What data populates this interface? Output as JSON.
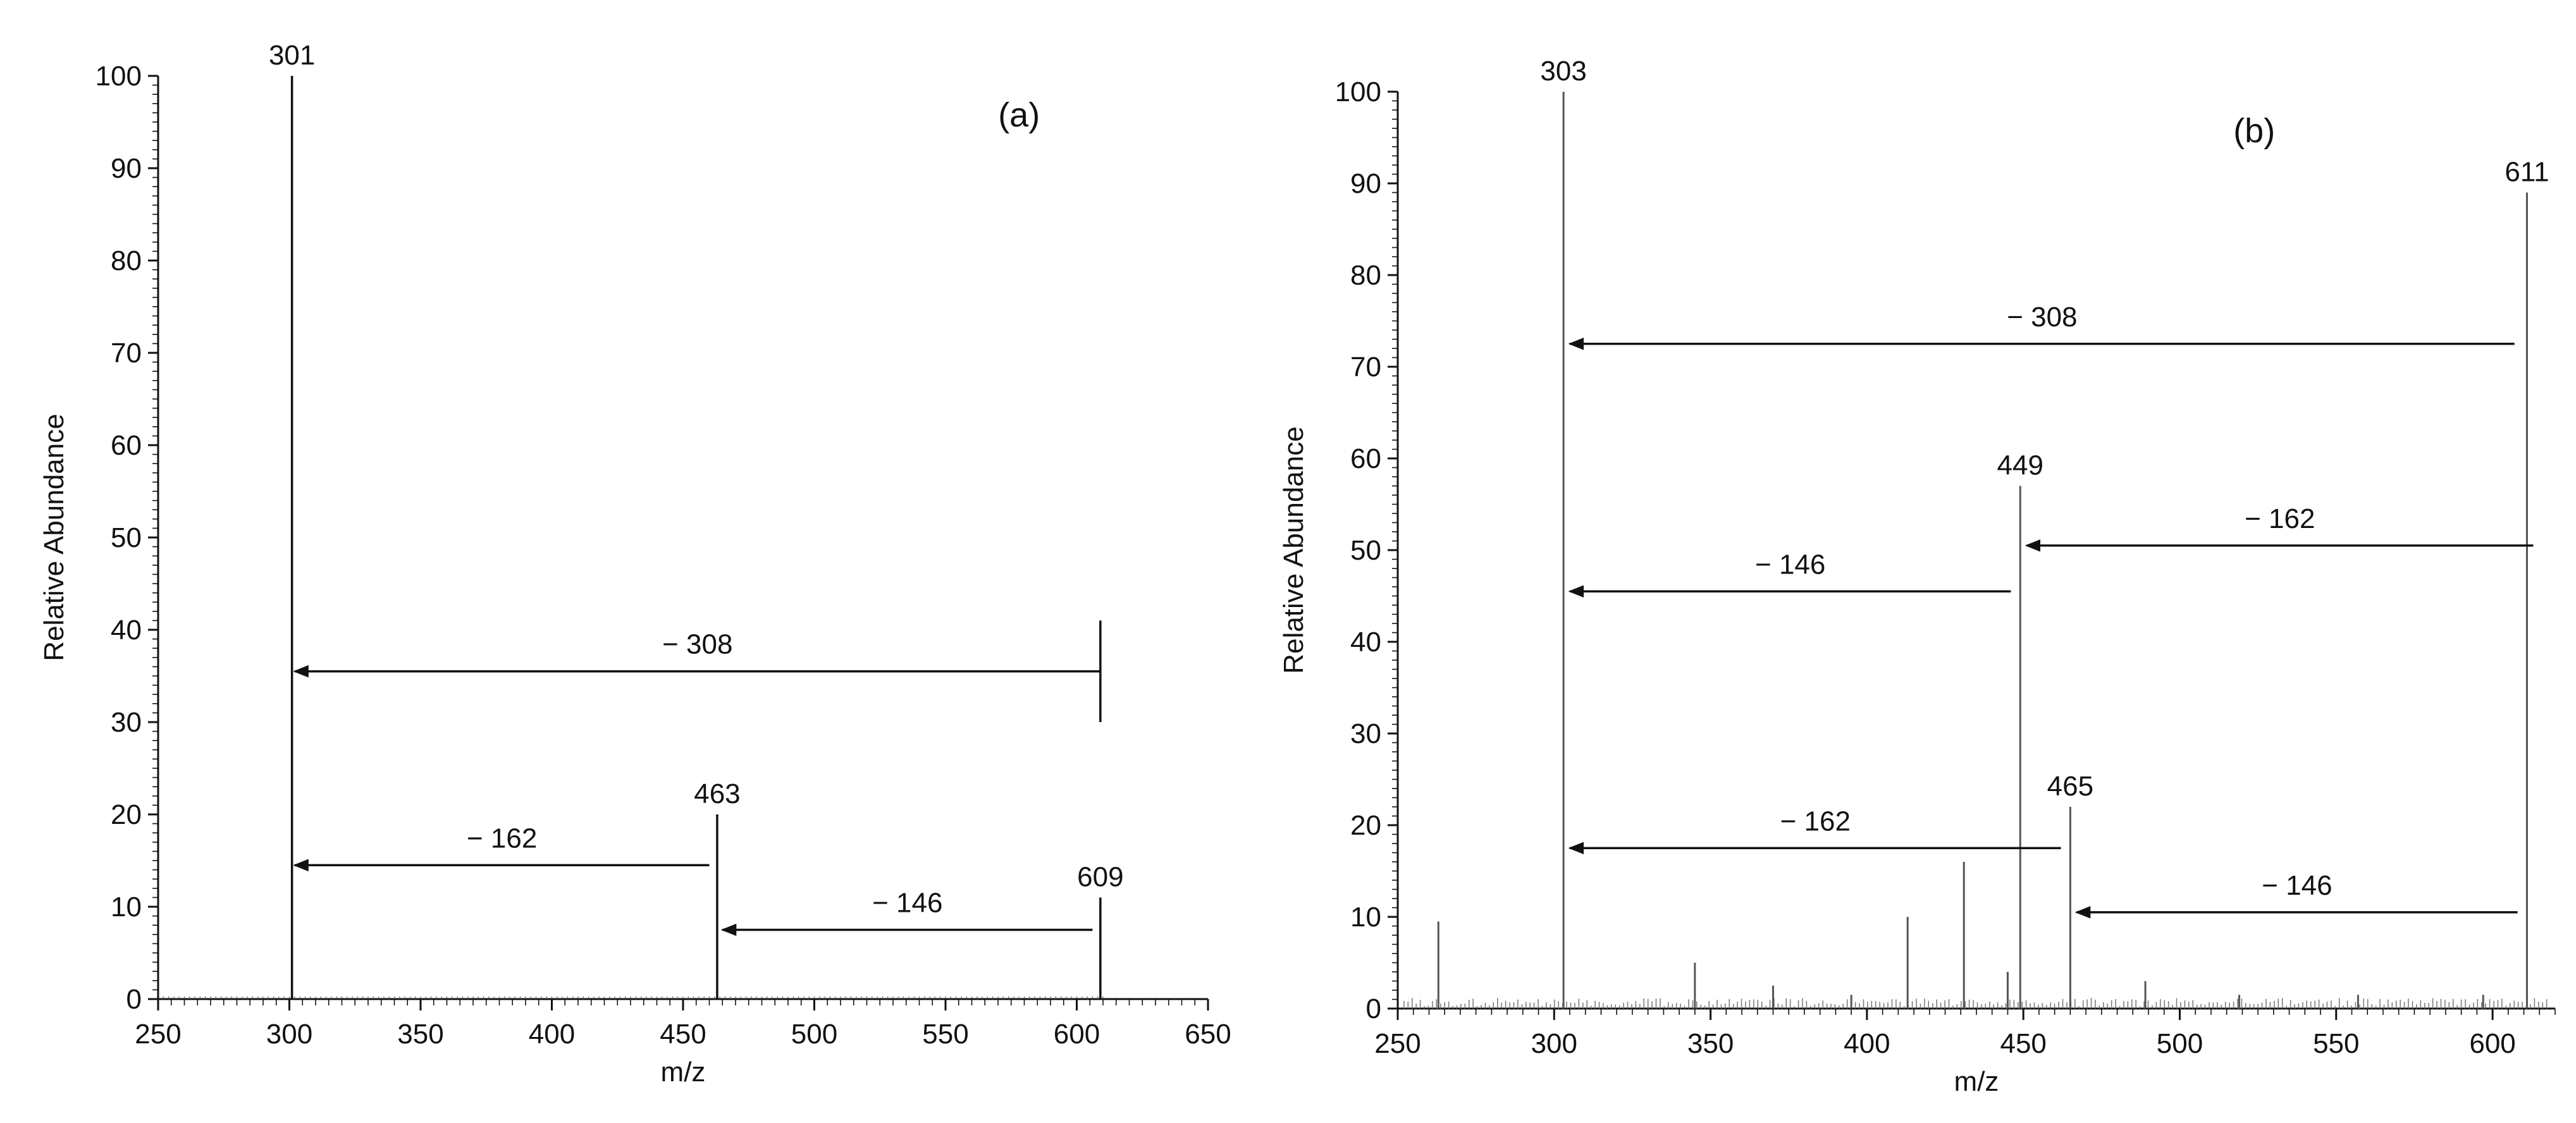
{
  "chart_data": [
    {
      "type": "bar",
      "panel_label": "(a)",
      "xlabel": "m/z",
      "ylabel": "Relative Abundance",
      "xlim": [
        250,
        650
      ],
      "ylim": [
        0,
        100
      ],
      "x_ticks": [
        "250",
        "300",
        "350",
        "400",
        "450",
        "500",
        "550",
        "600",
        "650"
      ],
      "y_ticks": [
        "0",
        "10",
        "20",
        "30",
        "40",
        "50",
        "60",
        "70",
        "80",
        "90",
        "100"
      ],
      "grid": false,
      "peaks": [
        {
          "x": 301,
          "y": 100,
          "label": "301"
        },
        {
          "x": 463,
          "y": 20,
          "label": "463"
        },
        {
          "x": 609,
          "y": 11,
          "label": "609"
        }
      ],
      "annotations": [
        {
          "type": "bracket",
          "x": 609,
          "y_from": 30,
          "y_to": 41
        },
        {
          "label": "− 308",
          "from_x": 609,
          "to_x": 302,
          "y": 35.5
        },
        {
          "label": "− 162",
          "from_x": 460,
          "to_x": 302,
          "y": 14.5
        },
        {
          "label": "− 146",
          "from_x": 606,
          "to_x": 465,
          "y": 7.5
        }
      ]
    },
    {
      "type": "bar",
      "panel_label": "(b)",
      "xlabel": "m/z",
      "ylabel": "Relative Abundance",
      "xlim": [
        250,
        620
      ],
      "ylim": [
        0,
        100
      ],
      "x_ticks": [
        "250",
        "300",
        "350",
        "400",
        "450",
        "500",
        "550",
        "600"
      ],
      "y_ticks": [
        "0",
        "10",
        "20",
        "30",
        "40",
        "50",
        "60",
        "70",
        "80",
        "90",
        "100"
      ],
      "grid": false,
      "peaks": [
        {
          "x": 303,
          "y": 100,
          "label": "303"
        },
        {
          "x": 611,
          "y": 89,
          "label": "611"
        },
        {
          "x": 449,
          "y": 57,
          "label": "449"
        },
        {
          "x": 465,
          "y": 22,
          "label": "465"
        },
        {
          "x": 263,
          "y": 9.5
        },
        {
          "x": 345,
          "y": 5
        },
        {
          "x": 370,
          "y": 2.5
        },
        {
          "x": 395,
          "y": 1.5
        },
        {
          "x": 413,
          "y": 10
        },
        {
          "x": 431,
          "y": 16
        },
        {
          "x": 445,
          "y": 4
        },
        {
          "x": 489,
          "y": 3
        },
        {
          "x": 519,
          "y": 1.5
        },
        {
          "x": 557,
          "y": 1.5
        },
        {
          "x": 597,
          "y": 1.5
        }
      ],
      "annotations": [
        {
          "label": "− 308",
          "from_x": 607,
          "to_x": 305,
          "y": 72.5
        },
        {
          "label": "− 162",
          "from_x": 613,
          "to_x": 451,
          "y": 50.5
        },
        {
          "label": "− 146",
          "from_x": 446,
          "to_x": 305,
          "y": 45.5
        },
        {
          "label": "− 162",
          "from_x": 462,
          "to_x": 305,
          "y": 17.5
        },
        {
          "label": "− 146",
          "from_x": 608,
          "to_x": 467,
          "y": 10.5
        }
      ]
    }
  ]
}
